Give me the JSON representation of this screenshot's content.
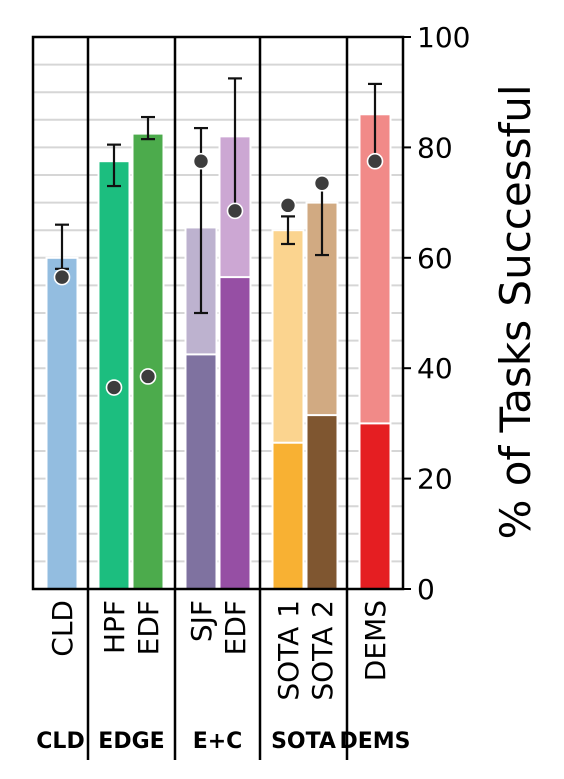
{
  "chart_data": {
    "type": "bar",
    "ylabel": "% of Tasks Successful",
    "ylim": [
      0,
      100
    ],
    "y_ticks": [
      "0",
      "20",
      "40",
      "60",
      "80",
      "100"
    ],
    "y_axis_position": "right",
    "grid": "horizontal",
    "groups": [
      {
        "name": "CLD",
        "bars": [
          {
            "label": "CLD",
            "base_value": null,
            "total": 60,
            "err_low": 58,
            "err_high": 66,
            "point": 56.5,
            "top_color": "#93bde0",
            "base_color": "#93bde0"
          }
        ]
      },
      {
        "name": "EDGE",
        "bars": [
          {
            "label": "HPF",
            "base_value": null,
            "total": 77.5,
            "err_low": 73,
            "err_high": 80.5,
            "point": 36.5,
            "top_color": "#1cbe7f",
            "base_color": "#1cbe7f"
          },
          {
            "label": "EDF",
            "base_value": null,
            "total": 82.5,
            "err_low": 81.5,
            "err_high": 85.5,
            "point": 38.5,
            "top_color": "#4cab4c",
            "base_color": "#4cab4c"
          }
        ]
      },
      {
        "name": "E+C",
        "bars": [
          {
            "label": "SJF",
            "base_value": 42.5,
            "total": 65.5,
            "err_low": 50,
            "err_high": 83.5,
            "point": 77.5,
            "top_color": "#bdb2cf",
            "base_color": "#7f72a0"
          },
          {
            "label": "EDF",
            "base_value": 56.5,
            "total": 82,
            "err_low": 68.5,
            "err_high": 92.5,
            "point": 68.5,
            "top_color": "#cca7d3",
            "base_color": "#964fa4"
          }
        ]
      },
      {
        "name": "SOTA",
        "bars": [
          {
            "label": "SOTA 1",
            "base_value": 26.5,
            "total": 65,
            "err_low": 62.5,
            "err_high": 67.5,
            "point": 69.5,
            "top_color": "#fbd48f",
            "base_color": "#f8b133"
          },
          {
            "label": "SOTA 2",
            "base_value": 31.5,
            "total": 70,
            "err_low": 60.5,
            "err_high": 74,
            "point": 73.5,
            "top_color": "#d1aa82",
            "base_color": "#7f5630"
          }
        ]
      },
      {
        "name": "DEMS",
        "bars": [
          {
            "label": "DEMS",
            "base_value": 30,
            "total": 86,
            "err_low": 77,
            "err_high": 91.5,
            "point": 77.5,
            "top_color": "#f18a88",
            "base_color": "#e51e22"
          }
        ]
      }
    ]
  }
}
